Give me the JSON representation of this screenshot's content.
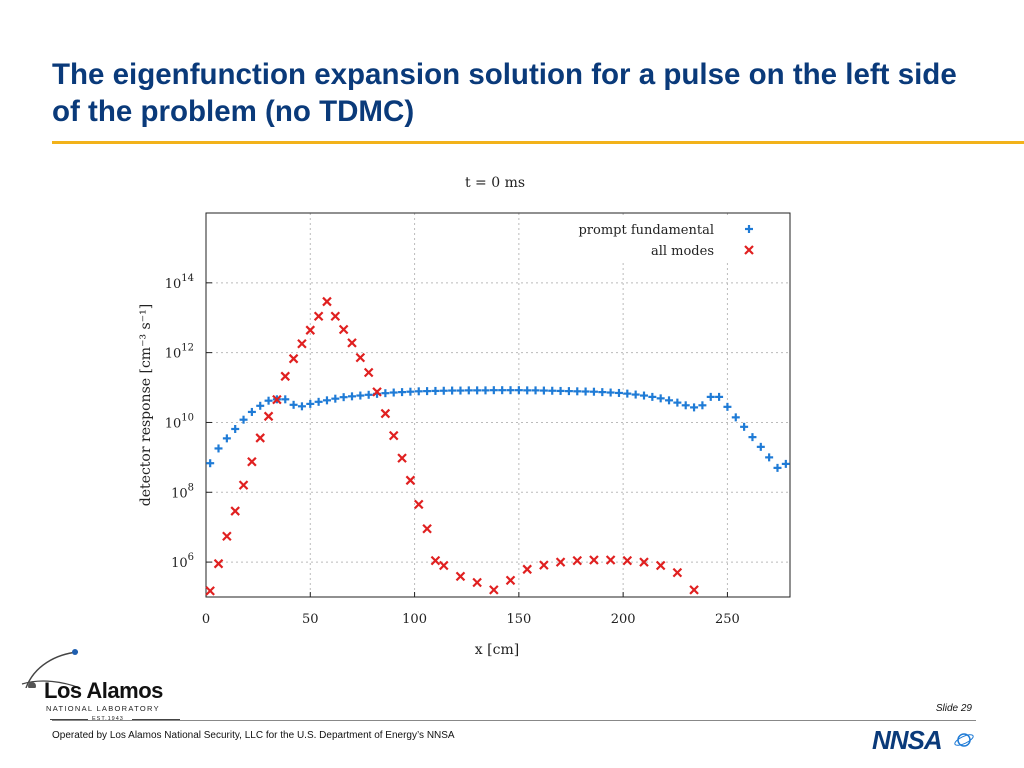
{
  "slide": {
    "title": "The eigenfunction expansion solution for a pulse on the left side of the problem (no TDMC)",
    "slide_number": "Slide 29",
    "footer": "Operated by Los Alamos National Security, LLC for the U.S. Department of Energy’s NNSA",
    "accent_color": "#f2b21a",
    "title_color": "#0a3a7a"
  },
  "logos": {
    "lanl_main": "Los Alamos",
    "lanl_sub": "NATIONAL LABORATORY",
    "lanl_est": "EST.1943",
    "nnsa": "NNSA"
  },
  "chart_data": {
    "type": "scatter",
    "title": "t = 0 ms",
    "xlabel": "x [cm]",
    "ylabel": "detector response [cm⁻³ s⁻¹]",
    "xlim": [
      0,
      280
    ],
    "ylim": [
      100000,
      10000000000000000
    ],
    "yscale": "log",
    "x_ticks": [
      0,
      50,
      100,
      150,
      200,
      250
    ],
    "x_tick_labels": [
      "0",
      "50",
      "100",
      "150",
      "200",
      "250"
    ],
    "y_tick_exponents": [
      6,
      8,
      10,
      12,
      14
    ],
    "y_tick_base": "10",
    "grid": true,
    "legend_position": "top-right",
    "series": [
      {
        "name": "prompt fundamental",
        "marker": "plus",
        "color": "#1f7bd6",
        "x": [
          2,
          6,
          10,
          14,
          18,
          22,
          26,
          30,
          34,
          38,
          42,
          46,
          50,
          54,
          58,
          62,
          66,
          70,
          74,
          78,
          82,
          86,
          90,
          94,
          98,
          102,
          106,
          110,
          114,
          118,
          122,
          126,
          130,
          134,
          138,
          142,
          146,
          150,
          154,
          158,
          162,
          166,
          170,
          174,
          178,
          182,
          186,
          190,
          194,
          198,
          202,
          206,
          210,
          214,
          218,
          222,
          226,
          230,
          234,
          238,
          242,
          246,
          250,
          254,
          258,
          262,
          266,
          270,
          274,
          278
        ],
        "y": [
          680000000.0,
          1800000000.0,
          3500000000.0,
          6500000000.0,
          12000000000.0,
          20000000000.0,
          30000000000.0,
          42000000000.0,
          46000000000.0,
          46000000000.0,
          32000000000.0,
          29000000000.0,
          34000000000.0,
          39000000000.0,
          43000000000.0,
          48000000000.0,
          53000000000.0,
          56000000000.0,
          59000000000.0,
          62000000000.0,
          66000000000.0,
          69000000000.0,
          72000000000.0,
          74000000000.0,
          76000000000.0,
          78000000000.0,
          79000000000.0,
          80000000000.0,
          81000000000.0,
          82000000000.0,
          82000000000.0,
          83000000000.0,
          83000000000.0,
          83000000000.0,
          84000000000.0,
          84000000000.0,
          84000000000.0,
          84000000000.0,
          83000000000.0,
          83000000000.0,
          82000000000.0,
          81000000000.0,
          80000000000.0,
          79000000000.0,
          78000000000.0,
          77000000000.0,
          76000000000.0,
          74000000000.0,
          72000000000.0,
          70000000000.0,
          67000000000.0,
          63000000000.0,
          59000000000.0,
          54000000000.0,
          49000000000.0,
          43000000000.0,
          37000000000.0,
          31000000000.0,
          27000000000.0,
          31000000000.0,
          54000000000.0,
          54000000000.0,
          28000000000.0,
          14000000000.0,
          7500000000.0,
          3800000000.0,
          2000000000.0,
          1000000000.0,
          500000000.0,
          650000000.0
        ]
      },
      {
        "name": "all modes",
        "marker": "x",
        "color": "#e02020",
        "x": [
          2,
          6,
          10,
          14,
          18,
          22,
          26,
          30,
          34,
          38,
          42,
          46,
          50,
          54,
          58,
          62,
          66,
          70,
          74,
          78,
          82,
          86,
          90,
          94,
          98,
          102,
          106,
          110,
          114,
          122,
          130,
          138,
          146,
          154,
          162,
          170,
          178,
          186,
          194,
          202,
          210,
          218,
          226,
          234
        ],
        "y": [
          150000.0,
          900000.0,
          5500000.0,
          29000000.0,
          160000000.0,
          750000000.0,
          3600000000.0,
          15000000000.0,
          45000000000.0,
          210000000000.0,
          670000000000.0,
          1800000000000.0,
          4400000000000.0,
          11000000000000.0,
          29000000000000.0,
          11000000000000.0,
          4600000000000.0,
          1900000000000.0,
          720000000000.0,
          270000000000.0,
          75000000000.0,
          18000000000.0,
          4200000000.0,
          950000000.0,
          220000000.0,
          45000000.0,
          9000000.0,
          1100000.0,
          800000.0,
          390000.0,
          260000.0,
          160000.0,
          300000.0,
          620000.0,
          820000.0,
          1000000.0,
          1100000.0,
          1150000.0,
          1150000.0,
          1100000.0,
          1000000.0,
          800000.0,
          500000.0,
          160000.0
        ]
      }
    ]
  }
}
